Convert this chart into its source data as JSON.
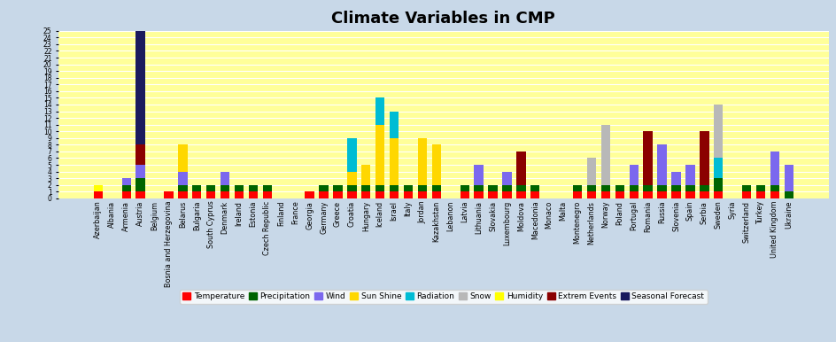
{
  "title": "Climate Variables in CMP",
  "background_color": "#c8d8e8",
  "plot_background": "#ffff99",
  "categories": [
    "Azerbaijan",
    "Albania",
    "Armenia",
    "Austria",
    "Belgium",
    "Bosnia and Herzegovina",
    "Belarus",
    "Bulgaria",
    "South Cyprus",
    "Denmark",
    "Ireland",
    "Estonia",
    "Czech Republic",
    "Finland",
    "France",
    "Georgia",
    "Germany",
    "Greece",
    "Croatia",
    "Hungary",
    "Iceland",
    "Israel",
    "Italy",
    "Jordan",
    "Kazakhstan",
    "Lebanon",
    "Latvia",
    "Lithuania",
    "Slovakia",
    "Luxembourg",
    "Moldova",
    "Macedonia",
    "Monaco",
    "Malta",
    "Montenegro",
    "Netherlands",
    "Norway",
    "Poland",
    "Portugal",
    "Romania",
    "Russia",
    "Slovenia",
    "Spain",
    "Serbia",
    "Sweden",
    "Syria",
    "Switzerland",
    "Turkey",
    "United Kingdom",
    "Ukraine"
  ],
  "series": {
    "Temperature": {
      "color": "#ff0000",
      "values": [
        1,
        0,
        1,
        1,
        0,
        1,
        1,
        1,
        1,
        1,
        1,
        1,
        1,
        0,
        0,
        1,
        1,
        1,
        1,
        1,
        1,
        1,
        1,
        1,
        1,
        0,
        1,
        1,
        1,
        1,
        1,
        1,
        0,
        0,
        1,
        1,
        1,
        1,
        1,
        1,
        1,
        1,
        1,
        1,
        1,
        0,
        1,
        1,
        1,
        0
      ]
    },
    "Precipitation": {
      "color": "#006400",
      "values": [
        0,
        0,
        1,
        2,
        0,
        0,
        1,
        1,
        1,
        1,
        1,
        1,
        1,
        0,
        0,
        0,
        1,
        1,
        1,
        1,
        1,
        1,
        1,
        1,
        1,
        0,
        1,
        1,
        1,
        1,
        1,
        1,
        0,
        0,
        1,
        1,
        1,
        1,
        1,
        1,
        1,
        1,
        1,
        1,
        2,
        0,
        1,
        1,
        1,
        1
      ]
    },
    "Wind": {
      "color": "#7b68ee",
      "values": [
        0,
        0,
        1,
        2,
        0,
        0,
        2,
        0,
        0,
        2,
        0,
        0,
        0,
        0,
        0,
        0,
        0,
        0,
        0,
        0,
        0,
        0,
        0,
        0,
        0,
        0,
        0,
        3,
        0,
        2,
        0,
        0,
        0,
        0,
        0,
        0,
        0,
        0,
        3,
        0,
        6,
        2,
        3,
        0,
        0,
        0,
        0,
        0,
        5,
        4
      ]
    },
    "Sun Shine": {
      "color": "#ffd700",
      "values": [
        0,
        0,
        0,
        0,
        0,
        0,
        4,
        0,
        0,
        0,
        0,
        0,
        0,
        0,
        0,
        0,
        0,
        0,
        2,
        3,
        9,
        7,
        0,
        7,
        6,
        0,
        0,
        0,
        0,
        0,
        0,
        0,
        0,
        0,
        0,
        0,
        0,
        0,
        0,
        0,
        0,
        0,
        0,
        0,
        0,
        0,
        0,
        0,
        0,
        0
      ]
    },
    "Radiation": {
      "color": "#00bcd4",
      "values": [
        0,
        0,
        0,
        0,
        0,
        0,
        0,
        0,
        0,
        0,
        0,
        0,
        0,
        0,
        0,
        0,
        0,
        0,
        5,
        0,
        4,
        4,
        0,
        0,
        0,
        0,
        0,
        0,
        0,
        0,
        0,
        0,
        0,
        0,
        0,
        0,
        0,
        0,
        0,
        0,
        0,
        0,
        0,
        0,
        3,
        0,
        0,
        0,
        0,
        0
      ]
    },
    "Snow": {
      "color": "#b8b8b8",
      "values": [
        0,
        0,
        0,
        0,
        0,
        0,
        0,
        0,
        0,
        0,
        0,
        0,
        0,
        0,
        0,
        0,
        0,
        0,
        0,
        0,
        0,
        0,
        0,
        0,
        0,
        0,
        0,
        0,
        0,
        0,
        0,
        0,
        0,
        0,
        0,
        4,
        9,
        0,
        0,
        0,
        0,
        0,
        0,
        0,
        8,
        0,
        0,
        0,
        0,
        0
      ]
    },
    "Humidity": {
      "color": "#ffff00",
      "values": [
        1,
        0,
        0,
        0,
        0,
        0,
        0,
        0,
        0,
        0,
        0,
        0,
        0,
        0,
        0,
        0,
        0,
        0,
        0,
        0,
        0,
        0,
        0,
        0,
        0,
        0,
        0,
        0,
        0,
        0,
        0,
        0,
        0,
        0,
        0,
        0,
        0,
        0,
        0,
        0,
        0,
        0,
        0,
        0,
        0,
        0,
        0,
        0,
        0,
        0
      ]
    },
    "Extrem Events": {
      "color": "#8b0000",
      "values": [
        0,
        0,
        0,
        3,
        0,
        0,
        0,
        0,
        0,
        0,
        0,
        0,
        0,
        0,
        0,
        0,
        0,
        0,
        0,
        0,
        0,
        0,
        0,
        0,
        0,
        0,
        0,
        0,
        0,
        0,
        5,
        0,
        0,
        0,
        0,
        0,
        0,
        0,
        0,
        8,
        0,
        0,
        0,
        8,
        0,
        0,
        0,
        0,
        0,
        0
      ]
    },
    "Seasonal Forecast": {
      "color": "#1a1a5e",
      "values": [
        0,
        0,
        0,
        18,
        0,
        0,
        0,
        0,
        0,
        0,
        0,
        0,
        0,
        0,
        0,
        0,
        0,
        0,
        0,
        0,
        0,
        0,
        0,
        0,
        0,
        0,
        0,
        0,
        0,
        0,
        0,
        0,
        0,
        0,
        0,
        0,
        0,
        0,
        0,
        0,
        0,
        0,
        0,
        0,
        0,
        0,
        0,
        0,
        0,
        0
      ]
    }
  },
  "ylim": [
    0,
    25
  ],
  "ytick_step": 1,
  "legend_order": [
    "Temperature",
    "Precipitation",
    "Wind",
    "Sun Shine",
    "Radiation",
    "Snow",
    "Humidity",
    "Extrem Events",
    "Seasonal Forecast"
  ]
}
